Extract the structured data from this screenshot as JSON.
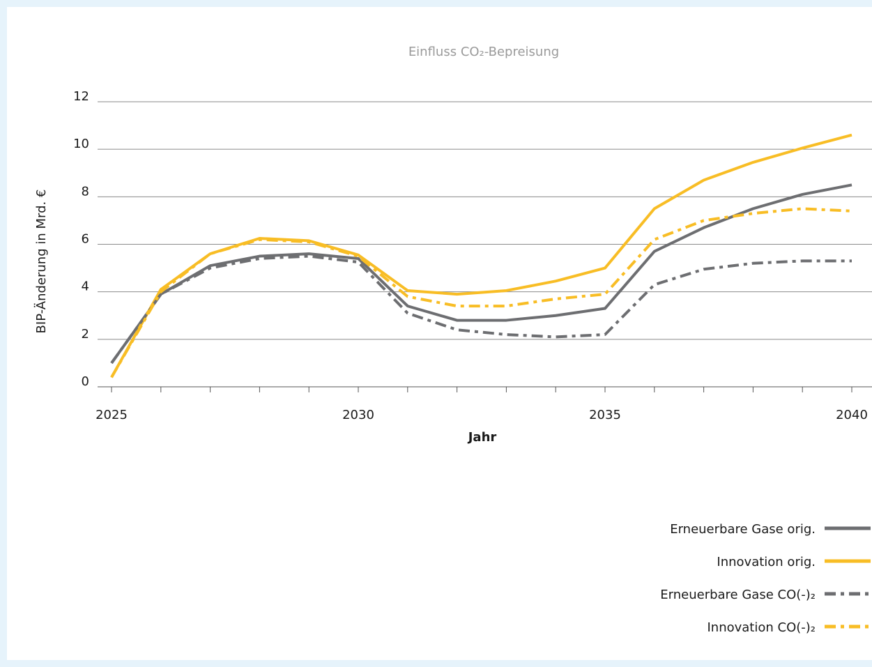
{
  "chart_data": {
    "type": "line",
    "title": "Einfluss CO₂-Bepreisung",
    "x_label": "Jahr",
    "y_label": "BIP-Änderung  in Mrd. €",
    "x": [
      2025,
      2026,
      2027,
      2028,
      2029,
      2030,
      2031,
      2032,
      2033,
      2034,
      2035,
      2036,
      2037,
      2038,
      2039,
      2040
    ],
    "xlim": [
      2025,
      2040
    ],
    "xticks": [
      2025,
      2030,
      2035,
      2040
    ],
    "ylim": [
      0,
      12
    ],
    "yticks": [
      0,
      2,
      4,
      6,
      8,
      10,
      12
    ],
    "grid": true,
    "legend": "bottom-right",
    "series": [
      {
        "name": "Erneuerbare Gase orig.",
        "color": "#6d6e71",
        "dash": "solid",
        "values": [
          1.0,
          3.9,
          5.1,
          5.5,
          5.6,
          5.4,
          3.4,
          2.8,
          2.8,
          3.0,
          3.3,
          5.7,
          6.7,
          7.5,
          8.1,
          8.5
        ]
      },
      {
        "name": "Innovation orig.",
        "color": "#f8bd25",
        "dash": "solid",
        "values": [
          0.4,
          4.1,
          5.6,
          6.25,
          6.15,
          5.55,
          4.05,
          3.9,
          4.05,
          4.45,
          5.0,
          7.5,
          8.7,
          9.45,
          10.05,
          10.6
        ]
      },
      {
        "name": "Erneuerbare Gase CO(-)₂",
        "color": "#6d6e71",
        "dash": "dashdot",
        "values": [
          1.0,
          3.9,
          5.0,
          5.4,
          5.5,
          5.25,
          3.1,
          2.4,
          2.2,
          2.1,
          2.2,
          4.3,
          4.95,
          5.2,
          5.3,
          5.3
        ]
      },
      {
        "name": "Innovation CO(-)₂",
        "color": "#f8bd25",
        "dash": "dashdot",
        "values": [
          0.4,
          4.0,
          5.6,
          6.2,
          6.1,
          5.5,
          3.8,
          3.4,
          3.4,
          3.7,
          3.9,
          6.2,
          7.0,
          7.3,
          7.5,
          7.4
        ]
      }
    ]
  }
}
